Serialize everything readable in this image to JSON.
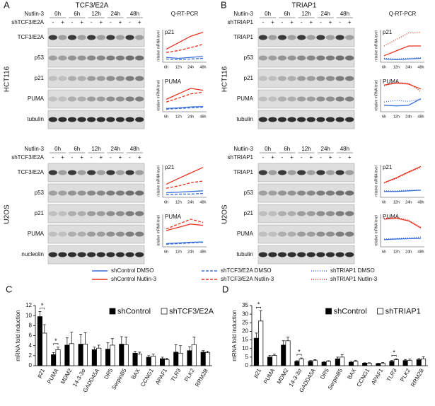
{
  "panels": [
    {
      "label": "A",
      "protein_title": "TCF3/E2A",
      "assay": "Q-RT-PCR",
      "blocks": [
        {
          "cell_line": "HCT116",
          "treatment": "Nutlin-3",
          "times": [
            "0h",
            "6h",
            "12h",
            "24h",
            "48h"
          ],
          "shrna": "shTCF3/E2A",
          "lanes": [
            "-",
            "+",
            "-",
            "+",
            "-",
            "+",
            "-",
            "+",
            "-",
            "+"
          ],
          "blots": [
            "TCF3/E2A",
            "p53",
            "p21",
            "PUMA",
            "tubulin"
          ]
        },
        {
          "cell_line": "U2OS",
          "treatment": "Nutlin-3",
          "times": [
            "0h",
            "6h",
            "12h",
            "24h",
            "48h"
          ],
          "shrna": "shTCF3/E2A",
          "lanes": [
            "-",
            "+",
            "-",
            "+",
            "-",
            "+",
            "-",
            "+",
            "-",
            "+"
          ],
          "blots": [
            "TCF3/E2A",
            "p53",
            "p21",
            "PUMA",
            "nucleolin"
          ]
        }
      ]
    },
    {
      "label": "B",
      "protein_title": "TRIAP1",
      "assay": "Q-RT-PCR",
      "blocks": [
        {
          "cell_line": "HCT116",
          "treatment": "Nutlin-3",
          "times": [
            "0h",
            "6h",
            "12h",
            "24h",
            "48h"
          ],
          "shrna": "shTRIAP1",
          "lanes": [
            "-",
            "+",
            "-",
            "+",
            "-",
            "+",
            "-",
            "+",
            "-",
            "+"
          ],
          "blots": [
            "TRIAP1",
            "p53",
            "p21",
            "PUMA",
            "tubulin"
          ]
        },
        {
          "cell_line": "U2OS",
          "treatment": "Nutlin-3",
          "times": [
            "0h",
            "6h",
            "12h",
            "24h",
            "48h"
          ],
          "shrna": "shTRIAP1",
          "lanes": [
            "-",
            "+",
            "-",
            "+",
            "-",
            "+",
            "-",
            "+",
            "-",
            "+"
          ],
          "blots": [
            "TRIAP1",
            "p53",
            "p21",
            "PUMA",
            "tubulin"
          ]
        }
      ]
    }
  ],
  "legend": [
    {
      "name": "shControl DMSO",
      "color": "#3a6fd8",
      "dash": "solid"
    },
    {
      "name": "shControl Nutlin-3",
      "color": "#e8321e",
      "dash": "solid"
    },
    {
      "name": "shTCF3/E2A DMSO",
      "color": "#3a6fd8",
      "dash": "dashed"
    },
    {
      "name": "shTCF3/E2A Nutlin-3",
      "color": "#e8321e",
      "dash": "dashed"
    },
    {
      "name": "shTRIAP1 DMSO",
      "color": "#3a6fd8",
      "dash": "dotted"
    },
    {
      "name": "shTRIAP1 Nutlin-3",
      "color": "#e8321e",
      "dash": "dotted"
    }
  ],
  "chart_data": [
    {
      "type": "line",
      "title": "p21",
      "y_label": "relative mRNA level",
      "x": [
        "6h",
        "12h",
        "24h",
        "48h"
      ],
      "ylim": [
        0,
        100
      ],
      "series": [
        {
          "color": "#3a6fd8",
          "dash": "solid",
          "values": [
            15,
            12,
            15,
            18
          ]
        },
        {
          "color": "#e8321e",
          "dash": "solid",
          "values": [
            40,
            60,
            80,
            92
          ]
        },
        {
          "color": "#3a6fd8",
          "dash": "dashed",
          "values": [
            10,
            8,
            10,
            12
          ]
        },
        {
          "color": "#e8321e",
          "dash": "dashed",
          "values": [
            30,
            36,
            45,
            55
          ]
        }
      ]
    },
    {
      "type": "line",
      "title": "PUMA",
      "y_label": "relative mRNA level",
      "x": [
        "6h",
        "12h",
        "24h",
        "48h"
      ],
      "ylim": [
        0,
        100
      ],
      "series": [
        {
          "color": "#3a6fd8",
          "dash": "solid",
          "values": [
            10,
            12,
            15,
            16
          ]
        },
        {
          "color": "#e8321e",
          "dash": "solid",
          "values": [
            38,
            55,
            72,
            66
          ]
        },
        {
          "color": "#3a6fd8",
          "dash": "dashed",
          "values": [
            8,
            10,
            12,
            14
          ]
        },
        {
          "color": "#e8321e",
          "dash": "dashed",
          "values": [
            30,
            42,
            55,
            60
          ]
        }
      ]
    },
    {
      "type": "line",
      "title": "p21",
      "y_label": "relative mRNA level",
      "x": [
        "6h",
        "12h",
        "24h",
        "48h"
      ],
      "ylim": [
        0,
        100
      ],
      "series": [
        {
          "color": "#3a6fd8",
          "dash": "solid",
          "values": [
            14,
            16,
            18,
            20
          ]
        },
        {
          "color": "#e8321e",
          "dash": "solid",
          "values": [
            40,
            58,
            75,
            92
          ]
        },
        {
          "color": "#3a6fd8",
          "dash": "dashed",
          "values": [
            8,
            10,
            10,
            12
          ]
        },
        {
          "color": "#e8321e",
          "dash": "dashed",
          "values": [
            28,
            35,
            45,
            50
          ]
        }
      ]
    },
    {
      "type": "line",
      "title": "PUMA",
      "y_label": "relative mRNA level",
      "x": [
        "6h",
        "12h",
        "24h",
        "48h"
      ],
      "ylim": [
        0,
        100
      ],
      "series": [
        {
          "color": "#3a6fd8",
          "dash": "solid",
          "values": [
            10,
            12,
            14,
            15
          ]
        },
        {
          "color": "#e8321e",
          "dash": "solid",
          "values": [
            50,
            60,
            70,
            66
          ]
        },
        {
          "color": "#3a6fd8",
          "dash": "dashed",
          "values": [
            8,
            10,
            12,
            14
          ]
        },
        {
          "color": "#e8321e",
          "dash": "dashed",
          "values": [
            55,
            70,
            85,
            75
          ]
        }
      ]
    },
    {
      "type": "line",
      "title": "p21",
      "y_label": "relative mRNA level",
      "x": [
        "6h",
        "12h",
        "24h",
        "48h"
      ],
      "ylim": [
        0,
        100
      ],
      "series": [
        {
          "color": "#3a6fd8",
          "dash": "solid",
          "values": [
            10,
            8,
            10,
            12
          ]
        },
        {
          "color": "#e8321e",
          "dash": "solid",
          "values": [
            20,
            35,
            50,
            50
          ]
        },
        {
          "color": "#3a6fd8",
          "dash": "dotted",
          "values": [
            12,
            10,
            12,
            14
          ]
        },
        {
          "color": "#e8321e",
          "dash": "dotted",
          "values": [
            50,
            70,
            90,
            92
          ]
        }
      ]
    },
    {
      "type": "line",
      "title": "PUMA",
      "y_label": "relative mRNA level",
      "x": [
        "6h",
        "12h",
        "24h",
        "48h"
      ],
      "ylim": [
        0,
        100
      ],
      "series": [
        {
          "color": "#3a6fd8",
          "dash": "solid",
          "values": [
            20,
            18,
            20,
            40
          ]
        },
        {
          "color": "#e8321e",
          "dash": "solid",
          "values": [
            82,
            88,
            85,
            70
          ]
        },
        {
          "color": "#3a6fd8",
          "dash": "dotted",
          "values": [
            30,
            35,
            32,
            38
          ]
        },
        {
          "color": "#e8321e",
          "dash": "dotted",
          "values": [
            80,
            90,
            88,
            62
          ]
        }
      ]
    },
    {
      "type": "line",
      "title": "p21",
      "y_label": "relative mRNA level",
      "x": [
        "6h",
        "12h",
        "24h",
        "48h"
      ],
      "ylim": [
        0,
        100
      ],
      "series": [
        {
          "color": "#3a6fd8",
          "dash": "solid",
          "values": [
            18,
            18,
            20,
            22
          ]
        },
        {
          "color": "#e8321e",
          "dash": "solid",
          "values": [
            45,
            60,
            78,
            95
          ]
        },
        {
          "color": "#3a6fd8",
          "dash": "dotted",
          "values": [
            20,
            20,
            22,
            22
          ]
        },
        {
          "color": "#e8321e",
          "dash": "dotted",
          "values": [
            44,
            58,
            76,
            92
          ]
        }
      ]
    },
    {
      "type": "line",
      "title": "PUMA",
      "y_label": "relative mRNA level",
      "x": [
        "6h",
        "12h",
        "24h",
        "48h"
      ],
      "ylim": [
        0,
        100
      ],
      "series": [
        {
          "color": "#3a6fd8",
          "dash": "solid",
          "values": [
            22,
            24,
            25,
            26
          ]
        },
        {
          "color": "#e8321e",
          "dash": "solid",
          "values": [
            85,
            88,
            80,
            58
          ]
        },
        {
          "color": "#3a6fd8",
          "dash": "dotted",
          "values": [
            24,
            26,
            28,
            30
          ]
        },
        {
          "color": "#e8321e",
          "dash": "dotted",
          "values": [
            88,
            90,
            82,
            60
          ]
        }
      ]
    },
    {
      "type": "bar",
      "panel": "C",
      "y_label": "mRNA fold induction",
      "categories": [
        "p21",
        "PUMA",
        "MDM2",
        "14-3-3σ",
        "GADD45A",
        "DR5",
        "SerpinB5",
        "BAX",
        "CCNG1",
        "APAF1",
        "TLR3",
        "PLK2",
        "RRM2B"
      ],
      "significance": [
        "*",
        "*",
        null,
        null,
        null,
        null,
        null,
        null,
        null,
        null,
        null,
        null,
        null
      ],
      "ylim": [
        0,
        12
      ],
      "yticks": [
        0,
        2,
        4,
        6,
        8,
        10,
        12
      ],
      "series": [
        {
          "name": "shControl",
          "color": "#000000",
          "values": [
            9.8,
            2.2,
            4.1,
            4.3,
            3.2,
            3.3,
            4.3,
            2.5,
            1.7,
            1.4,
            2.7,
            3.0,
            2.7
          ],
          "errors": [
            1.0,
            0.4,
            1.5,
            2.0,
            0.5,
            1.3,
            1.5,
            0.4,
            0.3,
            0.3,
            1.5,
            0.8,
            0.3
          ]
        },
        {
          "name": "shTCF3/E2A",
          "color": "#ffffff",
          "values": [
            6.5,
            3.2,
            4.4,
            4.3,
            3.5,
            4.1,
            4.2,
            2.3,
            1.9,
            1.2,
            2.5,
            4.2,
            2.6
          ],
          "errors": [
            1.7,
            0.5,
            2.3,
            2.3,
            0.6,
            1.3,
            1.5,
            0.4,
            0.4,
            0.3,
            1.5,
            1.5,
            0.3
          ]
        }
      ]
    },
    {
      "type": "bar",
      "panel": "D",
      "y_label": "mRNA fold induction",
      "categories": [
        "p21",
        "PUMA",
        "MDM2",
        "14-3-3σ",
        "GADD45A",
        "DR5",
        "SerpinB5",
        "BAX",
        "CCNG1",
        "APAF1",
        "TLR3",
        "PLK2",
        "RRM2B"
      ],
      "significance": [
        "*",
        null,
        null,
        "*",
        null,
        null,
        null,
        null,
        null,
        null,
        "*",
        null,
        null
      ],
      "ylim": [
        0,
        35
      ],
      "yticks": [
        0,
        5,
        10,
        15,
        20,
        25,
        30,
        35
      ],
      "series": [
        {
          "name": "shControl",
          "color": "#000000",
          "values": [
            16,
            5,
            12,
            2.5,
            2.5,
            2,
            4,
            2,
            1.5,
            1.2,
            2.5,
            3,
            3.5
          ],
          "errors": [
            3,
            1,
            2.5,
            0.4,
            0.5,
            0.4,
            1,
            0.5,
            0.2,
            0.2,
            0.5,
            0.6,
            0.7
          ]
        },
        {
          "name": "shTRIAP1",
          "color": "#ffffff",
          "values": [
            26,
            6,
            14.5,
            4,
            3,
            2.5,
            5,
            2.5,
            1.5,
            1.5,
            3.5,
            3,
            4
          ],
          "errors": [
            6,
            0.7,
            2.2,
            0.5,
            0.5,
            0.4,
            1.5,
            0.5,
            0.2,
            0.3,
            0.5,
            0.8,
            1.2
          ]
        }
      ]
    }
  ]
}
